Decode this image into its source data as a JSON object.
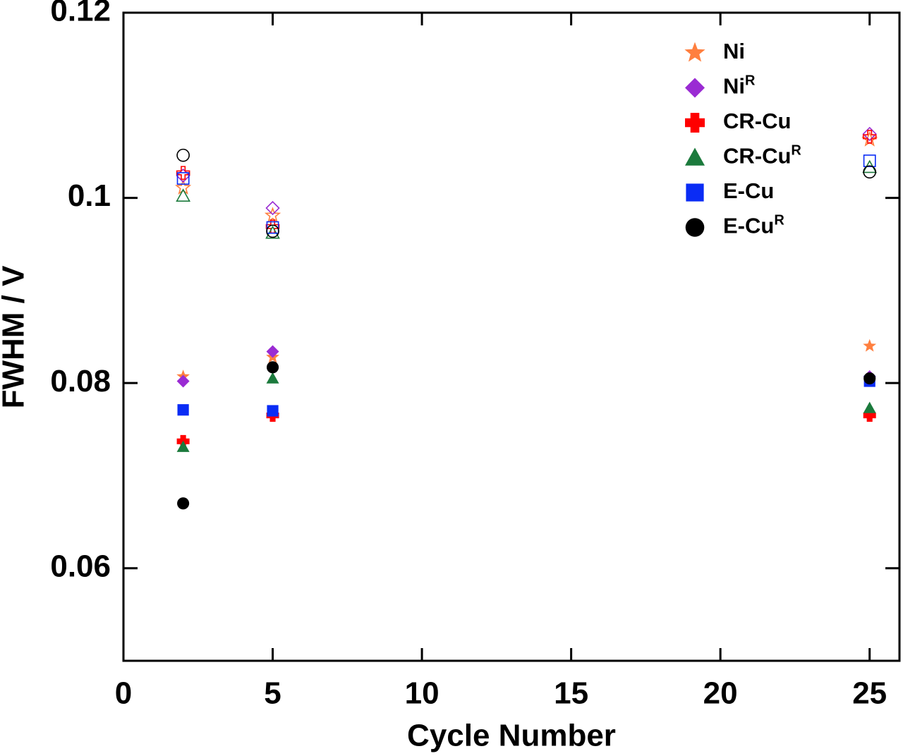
{
  "chart_data": {
    "type": "scatter",
    "x_label": "Cycle Number",
    "y_label": "FWHM / V",
    "x": [
      2,
      5,
      25
    ],
    "xlim": [
      0,
      26
    ],
    "xticks": [
      0,
      5,
      10,
      15,
      20,
      25
    ],
    "ylim": [
      0.05,
      0.12
    ],
    "yticks": [
      0.06,
      0.08,
      0.1,
      0.12
    ],
    "legend": "upper right",
    "series": [
      {
        "name": "Ni",
        "marker": "star",
        "color": "#ff7f3f",
        "filled": true,
        "values": [
          0.0807,
          0.0828,
          0.084
        ]
      },
      {
        "name": "Ni",
        "sup": "R",
        "marker": "diamond",
        "color": "#9a2bd3",
        "filled": true,
        "values": [
          0.0802,
          0.0834,
          0.0807
        ]
      },
      {
        "name": "CR-Cu",
        "marker": "plus",
        "color": "#ff0000",
        "filled": true,
        "values": [
          0.0737,
          0.0765,
          0.0765
        ]
      },
      {
        "name": "CR-Cu",
        "sup": "R",
        "marker": "triangle",
        "color": "#1b7a3c",
        "filled": true,
        "values": [
          0.0731,
          0.0805,
          0.0773
        ]
      },
      {
        "name": "E-Cu",
        "marker": "square",
        "color": "#0a2cf5",
        "filled": true,
        "values": [
          0.0771,
          0.077,
          0.0802
        ]
      },
      {
        "name": "E-Cu",
        "sup": "R",
        "marker": "circle",
        "color": "#000000",
        "filled": true,
        "values": [
          0.067,
          0.0817,
          0.0805
        ]
      },
      {
        "marker": "star",
        "color": "#ff7f3f",
        "filled": false,
        "values": [
          0.1011,
          0.0981,
          0.1063
        ]
      },
      {
        "marker": "diamond",
        "color": "#9a2bd3",
        "filled": false,
        "values": [
          0.1024,
          0.0989,
          0.1069
        ]
      },
      {
        "marker": "plus",
        "color": "#ff0000",
        "filled": false,
        "values": [
          0.1027,
          0.0969,
          0.1066
        ]
      },
      {
        "marker": "triangle",
        "color": "#1b7a3c",
        "filled": false,
        "values": [
          0.1002,
          0.0962,
          0.1033
        ]
      },
      {
        "marker": "square",
        "color": "#0a2cf5",
        "filled": false,
        "values": [
          0.1021,
          0.0968,
          0.104
        ]
      },
      {
        "marker": "circle",
        "color": "#000000",
        "filled": false,
        "values": [
          0.1046,
          0.0964,
          0.1028
        ]
      }
    ]
  }
}
